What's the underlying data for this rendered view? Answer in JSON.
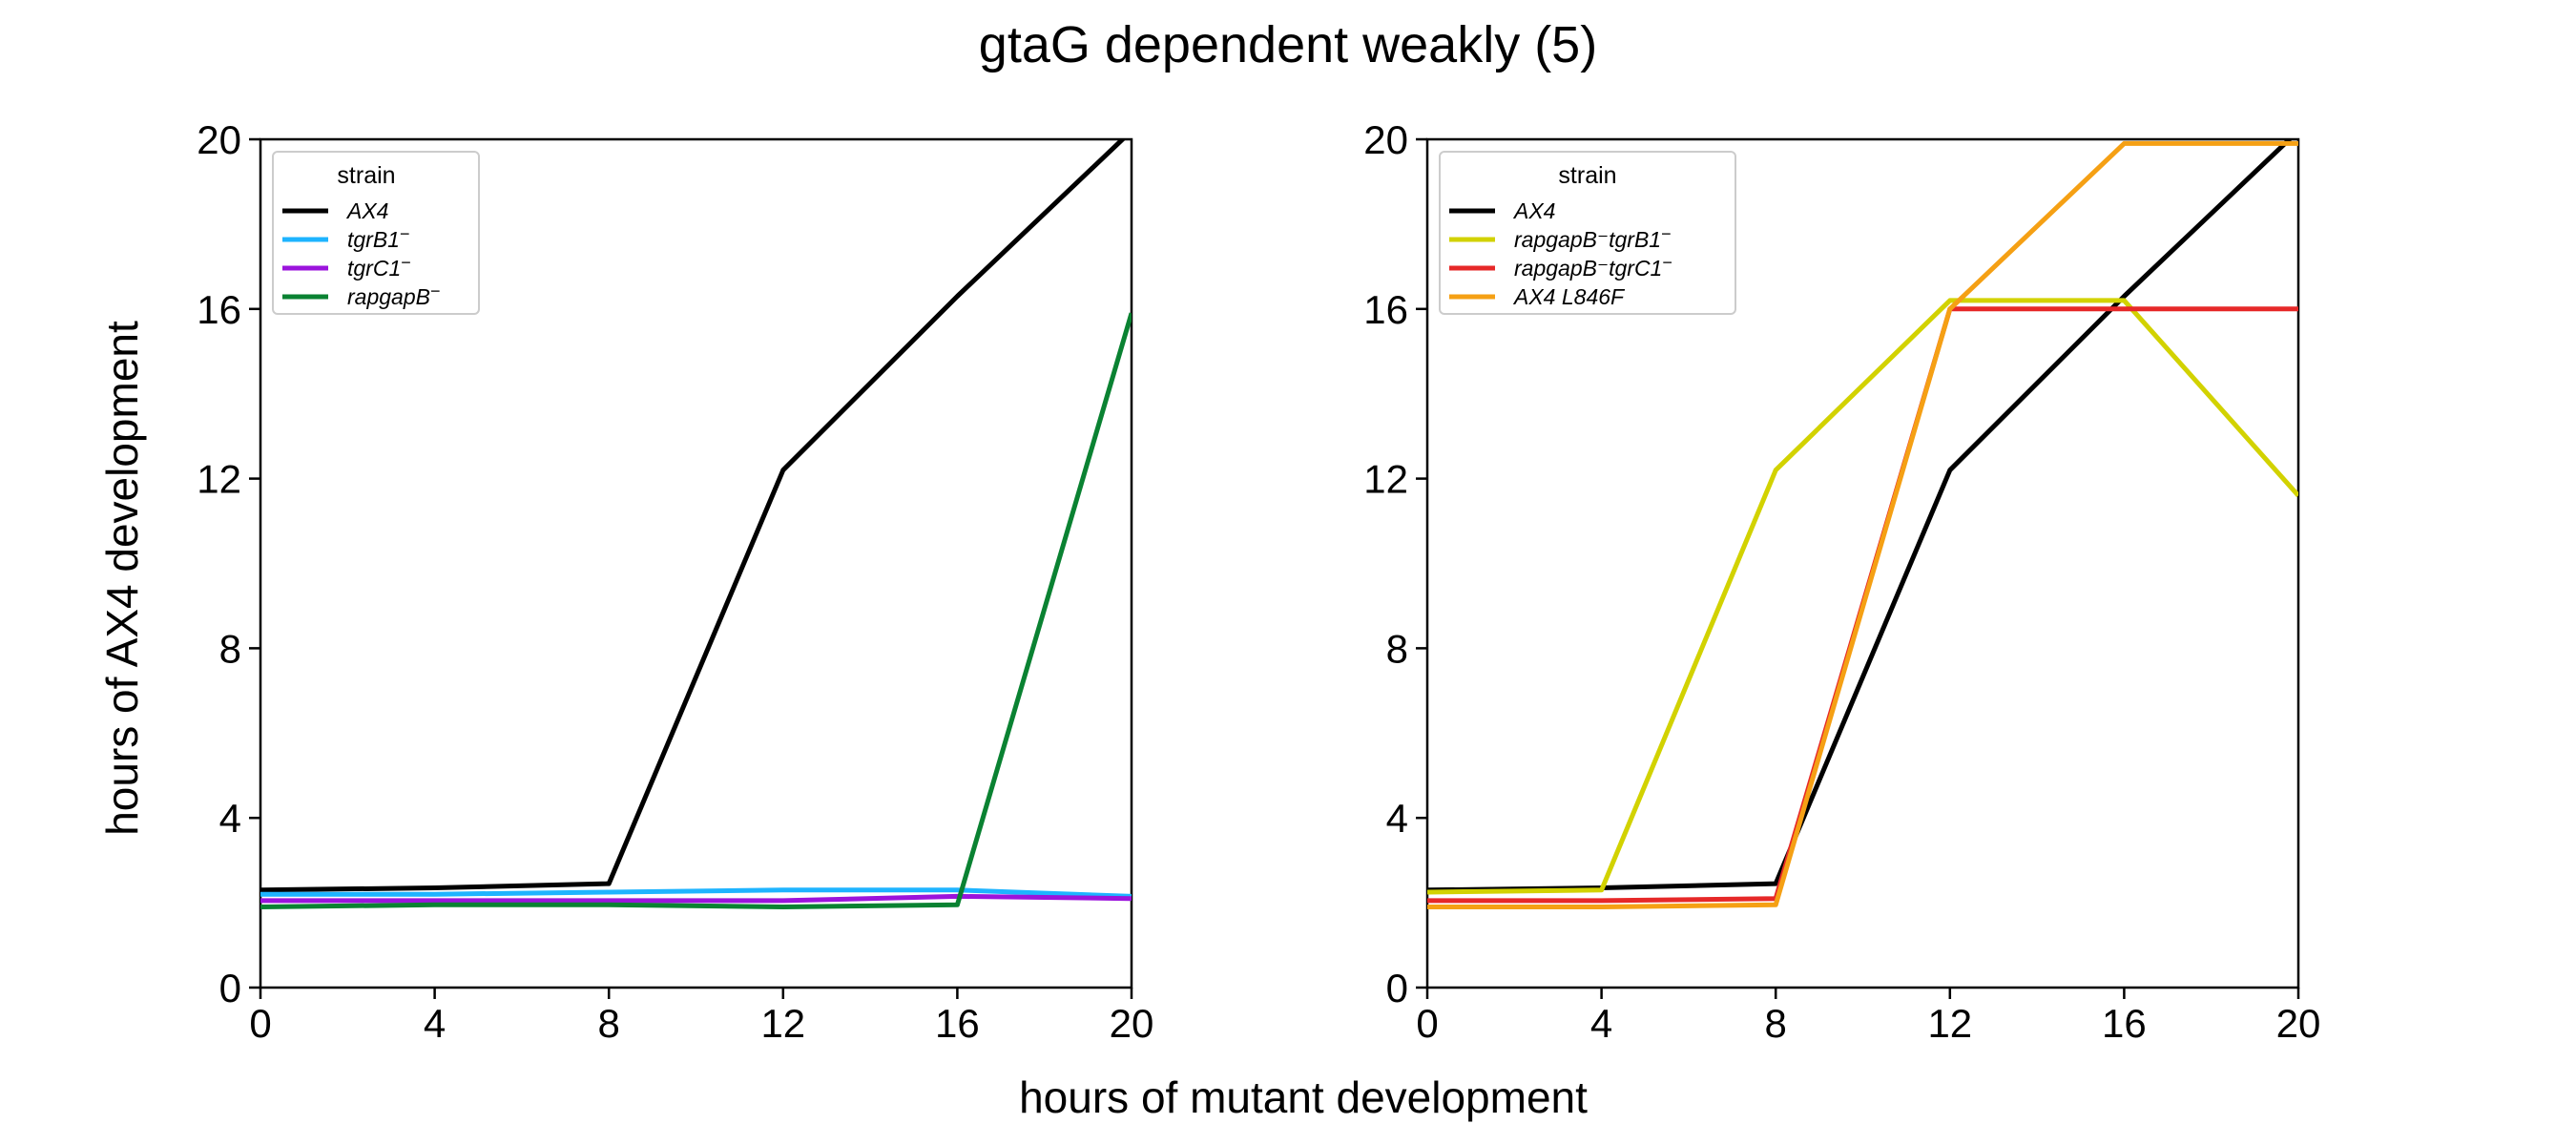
{
  "figure": {
    "suptitle": "gtaG dependent weakly (5)",
    "xlabel": "hours of mutant development",
    "ylabel": "hours of AX4 development"
  },
  "chart_data": [
    {
      "type": "line",
      "xlim": [
        0,
        20
      ],
      "ylim": [
        0,
        20
      ],
      "xticks": [
        "0",
        "4",
        "8",
        "12",
        "16",
        "20"
      ],
      "yticks": [
        "0",
        "4",
        "8",
        "12",
        "16",
        "20"
      ],
      "grid": false,
      "legend": {
        "title": "strain",
        "position": "top-left"
      },
      "x": [
        0,
        4,
        8,
        12,
        16,
        20
      ],
      "series": [
        {
          "name": "AX4",
          "sup": "",
          "color": "#000000",
          "values": [
            2.3,
            2.35,
            2.45,
            12.2,
            16.3,
            20.2
          ]
        },
        {
          "name": "tgrB1",
          "sup": "−",
          "color": "#1eb4ff",
          "values": [
            2.2,
            2.2,
            2.25,
            2.3,
            2.3,
            2.15
          ]
        },
        {
          "name": "tgrC1",
          "sup": "−",
          "color": "#9b14dc",
          "values": [
            2.05,
            2.05,
            2.05,
            2.05,
            2.15,
            2.1
          ]
        },
        {
          "name": "rapgapB",
          "sup": "−",
          "color": "#0a8232",
          "values": [
            1.9,
            1.95,
            1.95,
            1.9,
            1.95,
            15.9
          ]
        }
      ]
    },
    {
      "type": "line",
      "xlim": [
        0,
        20
      ],
      "ylim": [
        0,
        20
      ],
      "xticks": [
        "0",
        "4",
        "8",
        "12",
        "16",
        "20"
      ],
      "yticks": [
        "0",
        "4",
        "8",
        "12",
        "16",
        "20"
      ],
      "grid": false,
      "legend": {
        "title": "strain",
        "position": "top-left"
      },
      "x": [
        0,
        4,
        8,
        12,
        16,
        20
      ],
      "series": [
        {
          "name": "AX4",
          "sup": "",
          "color": "#000000",
          "values": [
            2.3,
            2.35,
            2.45,
            12.2,
            16.3,
            20.2
          ]
        },
        {
          "name": "rapgapB⁻tgrB1",
          "sup": "−",
          "color": "#d2d200",
          "values": [
            2.25,
            2.3,
            12.2,
            16.2,
            16.2,
            11.6
          ]
        },
        {
          "name": "rapgapB⁻tgrC1",
          "sup": "−",
          "color": "#e62828",
          "values": [
            2.05,
            2.05,
            2.1,
            16.0,
            16.0,
            16.0
          ]
        },
        {
          "name": "AX4 L846F",
          "sup": "",
          "color": "#f5a014",
          "values": [
            1.9,
            1.9,
            1.95,
            16.0,
            19.9,
            19.9
          ]
        }
      ]
    }
  ]
}
